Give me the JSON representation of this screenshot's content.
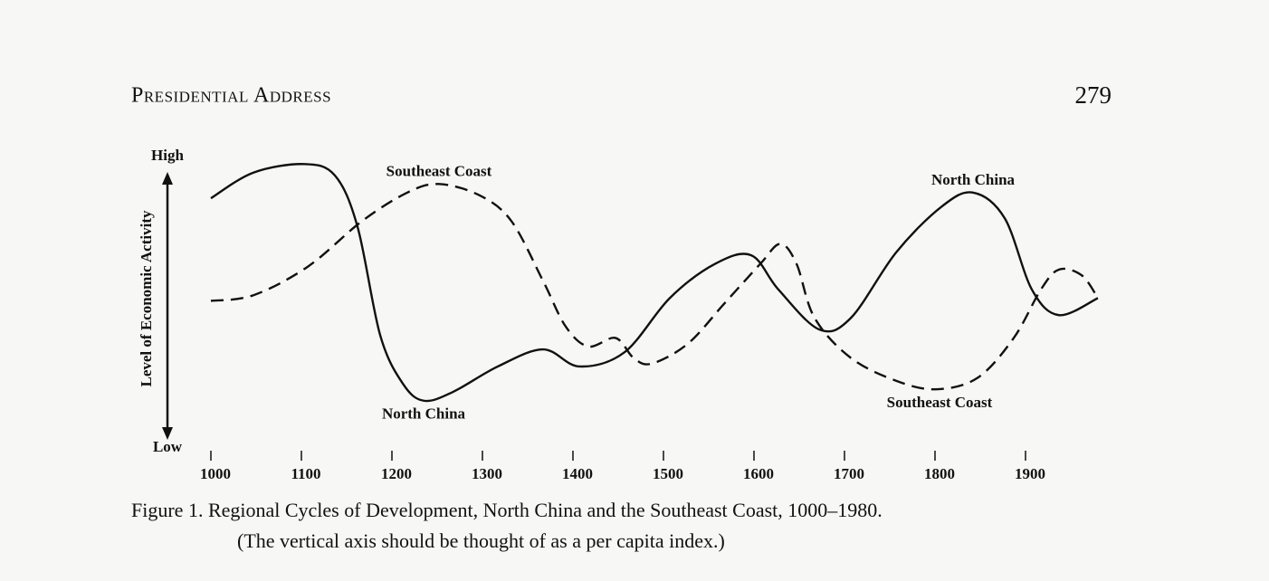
{
  "header": {
    "title": "Presidential Address",
    "page_number": "279"
  },
  "chart_data": {
    "type": "line",
    "ylabel": "Level of Economic Activity",
    "xlim": [
      1000,
      1980
    ],
    "xticks": [
      1000,
      1100,
      1200,
      1300,
      1400,
      1500,
      1600,
      1700,
      1800,
      1900
    ],
    "ylim": [
      0,
      100
    ],
    "yticks": [
      {
        "value": 0,
        "label": "Low"
      },
      {
        "value": 100,
        "label": "High"
      }
    ],
    "series": [
      {
        "name": "North China",
        "color": "#111111",
        "dash": "solid",
        "x": [
          1000,
          1047,
          1103,
          1137,
          1162,
          1187,
          1212,
          1235,
          1267,
          1317,
          1367,
          1407,
          1457,
          1507,
          1557,
          1597,
          1627,
          1672,
          1707,
          1757,
          1807,
          1842,
          1877,
          1907,
          1937,
          1980
        ],
        "values": [
          86,
          95,
          98,
          94,
          76,
          38,
          21,
          15,
          18,
          27,
          33,
          27,
          32,
          51,
          63,
          66,
          54,
          40,
          44,
          67,
          83,
          88,
          79,
          54,
          45,
          51
        ]
      },
      {
        "name": "Southeast Coast",
        "color": "#111111",
        "dash": "dashed",
        "x": [
          1000,
          1047,
          1107,
          1167,
          1217,
          1252,
          1297,
          1332,
          1367,
          1392,
          1417,
          1447,
          1467,
          1487,
          1527,
          1567,
          1607,
          1629,
          1647,
          1667,
          1707,
          1757,
          1801,
          1847,
          1887,
          1917,
          1937,
          1962,
          1980
        ],
        "values": [
          50,
          52,
          62,
          78,
          88,
          91,
          87,
          78,
          57,
          41,
          34,
          37,
          30,
          28,
          35,
          49,
          63,
          70,
          63,
          44,
          30,
          22,
          19,
          23,
          37,
          54,
          61,
          59,
          51
        ]
      }
    ],
    "annotations": [
      {
        "text_path": "series.1.name",
        "x": 1252,
        "y": 95
      },
      {
        "text_path": "series.0.name",
        "x": 1842,
        "y": 92
      },
      {
        "text_path": "series.0.name",
        "x": 1235,
        "y": 10
      },
      {
        "text_path": "series.1.name",
        "x": 1805,
        "y": 14
      }
    ],
    "caption": [
      "Figure 1.  Regional Cycles of Development, North China and the Southeast Coast, 1000–1980.",
      "(The vertical axis should be thought of as a per capita index.)"
    ]
  }
}
